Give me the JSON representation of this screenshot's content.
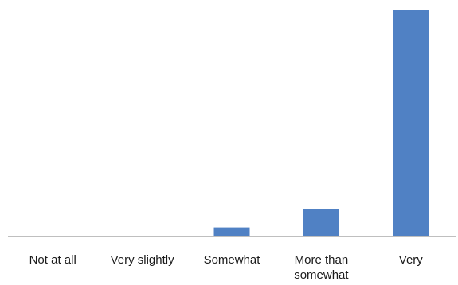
{
  "chart_data": {
    "type": "bar",
    "categories": [
      "Not at all",
      "Very slightly",
      "Somewhat",
      "More than somewhat",
      "Very"
    ],
    "category_lines": [
      [
        "Not at all"
      ],
      [
        "Very slightly"
      ],
      [
        "Somewhat"
      ],
      [
        "More than",
        "somewhat"
      ],
      [
        "Very"
      ]
    ],
    "values": [
      0,
      0,
      4,
      12,
      100
    ],
    "bar_color": "#5081c4",
    "axis_color": "#7f7f7f",
    "ylim": [
      0,
      100
    ],
    "grid": false,
    "legend": "none"
  }
}
